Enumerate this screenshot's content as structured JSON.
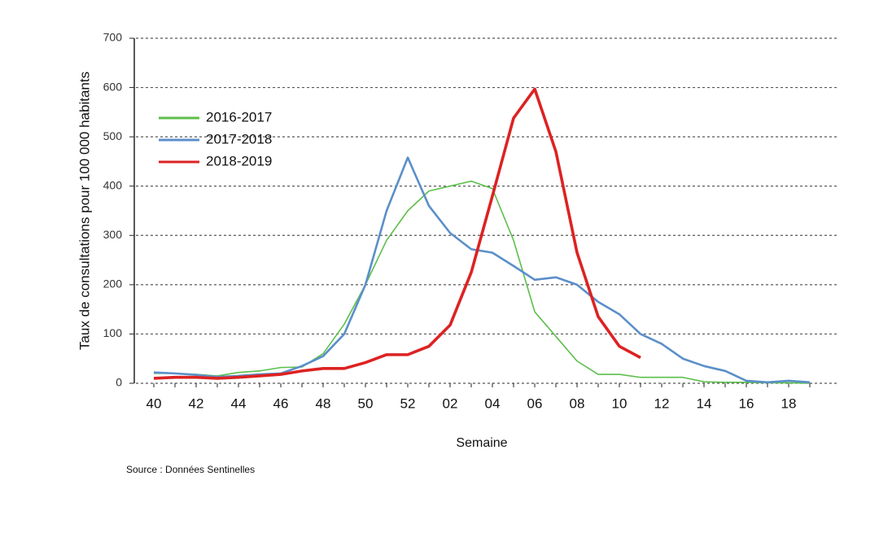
{
  "chart_data": {
    "type": "line",
    "y_label": "Taux de consultations pour 100 000 habitants",
    "x_label": "Semaine",
    "source": "Source : Données Sentinelles",
    "categories": [
      "40",
      null,
      "42",
      null,
      "44",
      null,
      "46",
      null,
      "48",
      null,
      "50",
      null,
      "52",
      null,
      "02",
      null,
      "04",
      null,
      "06",
      null,
      "08",
      null,
      "10",
      null,
      "12",
      null,
      "14",
      null,
      "16",
      null,
      "18",
      null
    ],
    "series": [
      {
        "name": "2016-2017",
        "color": "#5cbf4a",
        "values": [
          20,
          20,
          18,
          15,
          22,
          25,
          32,
          33,
          60,
          120,
          200,
          290,
          350,
          390,
          400,
          410,
          395,
          290,
          145,
          95,
          45,
          18,
          18,
          12,
          12,
          12,
          3,
          2,
          2,
          1,
          1,
          0
        ]
      },
      {
        "name": "2017-2018",
        "color": "#5b8fc9",
        "values": [
          22,
          20,
          17,
          13,
          15,
          18,
          20,
          35,
          55,
          100,
          200,
          350,
          458,
          360,
          305,
          272,
          265,
          238,
          210,
          215,
          200,
          165,
          140,
          100,
          80,
          50,
          35,
          25,
          5,
          2,
          5,
          2
        ]
      },
      {
        "name": "2018-2019",
        "color": "#dd2222",
        "values": [
          10,
          12,
          12,
          10,
          12,
          15,
          18,
          25,
          30,
          30,
          42,
          58,
          58,
          75,
          118,
          225,
          380,
          538,
          597,
          470,
          265,
          135,
          75,
          52,
          null,
          null,
          null,
          null,
          null,
          null,
          null,
          null
        ]
      }
    ],
    "ylim": [
      0,
      700
    ],
    "yticks": [
      0,
      100,
      200,
      300,
      400,
      500,
      600,
      700
    ],
    "grid": true,
    "legend": "upper left"
  }
}
